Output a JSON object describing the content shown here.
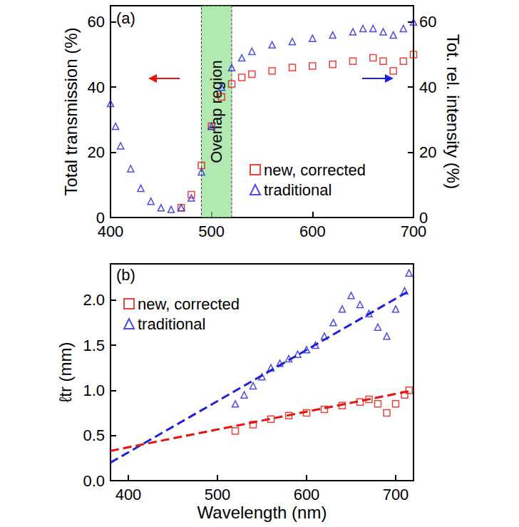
{
  "chart_data": [
    {
      "type": "scatter",
      "panel_label": "(a)",
      "ylabel": "Total transmission (%)",
      "y2label": "Tot. rel. intensity (%)",
      "xlim": [
        400,
        700
      ],
      "xticks": [
        400,
        500,
        600,
        700
      ],
      "ylim": [
        0,
        65
      ],
      "yticks": [
        0,
        20,
        40,
        60
      ],
      "y2lim": [
        0,
        65
      ],
      "y2ticks": [
        0,
        20,
        40,
        60
      ],
      "region": {
        "text": "Overlap region",
        "x": [
          490,
          520
        ],
        "color": "#90e090"
      },
      "series": [
        {
          "name": "new, corrected",
          "color": "#e8120c",
          "marker": "square",
          "axis": "y",
          "x": [
            470,
            480,
            490,
            500,
            510,
            520,
            530,
            540,
            560,
            580,
            600,
            620,
            640,
            660,
            670,
            680,
            690,
            700
          ],
          "values": [
            3,
            7,
            16,
            28,
            37,
            41,
            43,
            44,
            45,
            46,
            46.5,
            47,
            48,
            49,
            48,
            45,
            48,
            50
          ]
        },
        {
          "name": "traditional",
          "color": "#1f1fe0",
          "marker": "triangle",
          "axis": "y2",
          "x": [
            400,
            405,
            410,
            420,
            430,
            440,
            450,
            460,
            470,
            480,
            490,
            500,
            510,
            520,
            530,
            540,
            560,
            580,
            600,
            620,
            640,
            650,
            660,
            670,
            680,
            690,
            700
          ],
          "values": [
            35,
            28,
            22,
            15,
            9,
            5,
            3,
            2.5,
            3,
            6,
            14,
            28,
            40,
            46,
            49,
            51,
            53,
            54,
            55,
            56,
            57,
            58,
            58,
            57,
            56,
            58,
            60
          ]
        }
      ]
    },
    {
      "type": "scatter",
      "panel_label": "(b)",
      "xlabel": "Wavelength (nm)",
      "ylabel": "ℓtr (mm)",
      "xlim": [
        380,
        720
      ],
      "xticks": [
        400,
        500,
        600,
        700
      ],
      "ylim": [
        0,
        2.4
      ],
      "yticks": [
        {
          "value": 0,
          "label": "0.0"
        },
        0.5,
        {
          "value": 1,
          "label": "1.0"
        },
        1.5,
        {
          "value": 2,
          "label": "2.0"
        }
      ],
      "series": [
        {
          "name": "new, corrected",
          "color": "#e8120c",
          "marker": "square",
          "x": [
            520,
            540,
            560,
            580,
            600,
            620,
            640,
            660,
            670,
            680,
            690,
            700,
            710,
            715
          ],
          "values": [
            0.55,
            0.62,
            0.68,
            0.72,
            0.75,
            0.79,
            0.83,
            0.87,
            0.9,
            0.85,
            0.75,
            0.85,
            0.95,
            1.0
          ]
        },
        {
          "name": "traditional",
          "color": "#1f1fe0",
          "marker": "triangle",
          "x": [
            520,
            530,
            540,
            550,
            560,
            570,
            580,
            590,
            600,
            610,
            620,
            630,
            640,
            650,
            660,
            670,
            680,
            690,
            700,
            710,
            715
          ],
          "values": [
            0.85,
            0.95,
            1.05,
            1.15,
            1.25,
            1.3,
            1.35,
            1.4,
            1.45,
            1.5,
            1.6,
            1.75,
            1.9,
            2.05,
            1.95,
            1.85,
            1.7,
            1.6,
            1.9,
            2.1,
            2.3
          ]
        },
        {
          "type": "line",
          "line_style": "dashed",
          "color": "#1f1fe0",
          "x": [
            380,
            715
          ],
          "values": [
            0.2,
            2.1
          ]
        },
        {
          "type": "line",
          "line_style": "dashed",
          "color": "#e8120c",
          "x": [
            380,
            720
          ],
          "values": [
            0.33,
            1.0
          ]
        }
      ]
    }
  ]
}
